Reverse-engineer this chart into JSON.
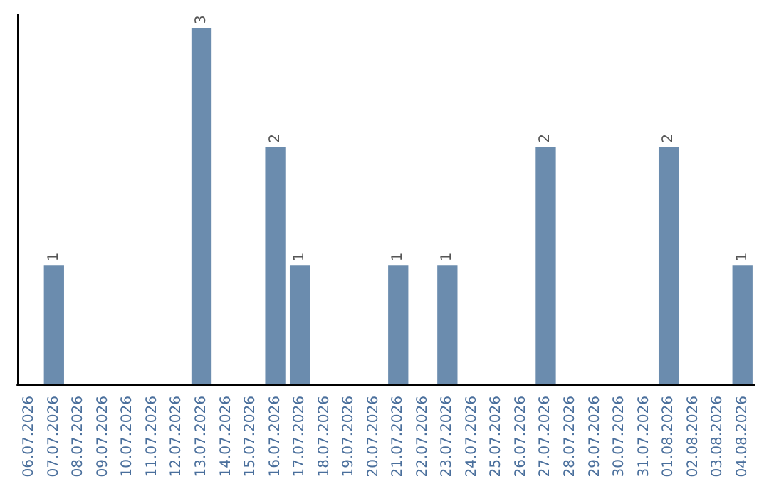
{
  "chart_data": {
    "type": "bar",
    "categories": [
      "06.07.2026",
      "07.07.2026",
      "08.07.2026",
      "09.07.2026",
      "10.07.2026",
      "11.07.2026",
      "12.07.2026",
      "13.07.2026",
      "14.07.2026",
      "15.07.2026",
      "16.07.2026",
      "17.07.2026",
      "18.07.2026",
      "19.07.2026",
      "20.07.2026",
      "21.07.2026",
      "22.07.2026",
      "23.07.2026",
      "24.07.2026",
      "25.07.2026",
      "26.07.2026",
      "27.07.2026",
      "28.07.2026",
      "29.07.2026",
      "30.07.2026",
      "31.07.2026",
      "01.08.2026",
      "02.08.2026",
      "03.08.2026",
      "04.08.2026"
    ],
    "values": [
      0,
      1,
      0,
      0,
      0,
      0,
      0,
      3,
      0,
      0,
      2,
      1,
      0,
      0,
      0,
      1,
      0,
      1,
      0,
      0,
      0,
      2,
      0,
      0,
      0,
      0,
      2,
      0,
      0,
      1
    ],
    "value_labels": [
      null,
      "1",
      null,
      null,
      null,
      null,
      null,
      "3",
      null,
      null,
      "2",
      "1",
      null,
      null,
      null,
      "1",
      null,
      "1",
      null,
      null,
      null,
      "2",
      null,
      null,
      null,
      null,
      "2",
      null,
      null,
      "1"
    ],
    "color": "#6b8cae",
    "tick_labels": "x"
  }
}
